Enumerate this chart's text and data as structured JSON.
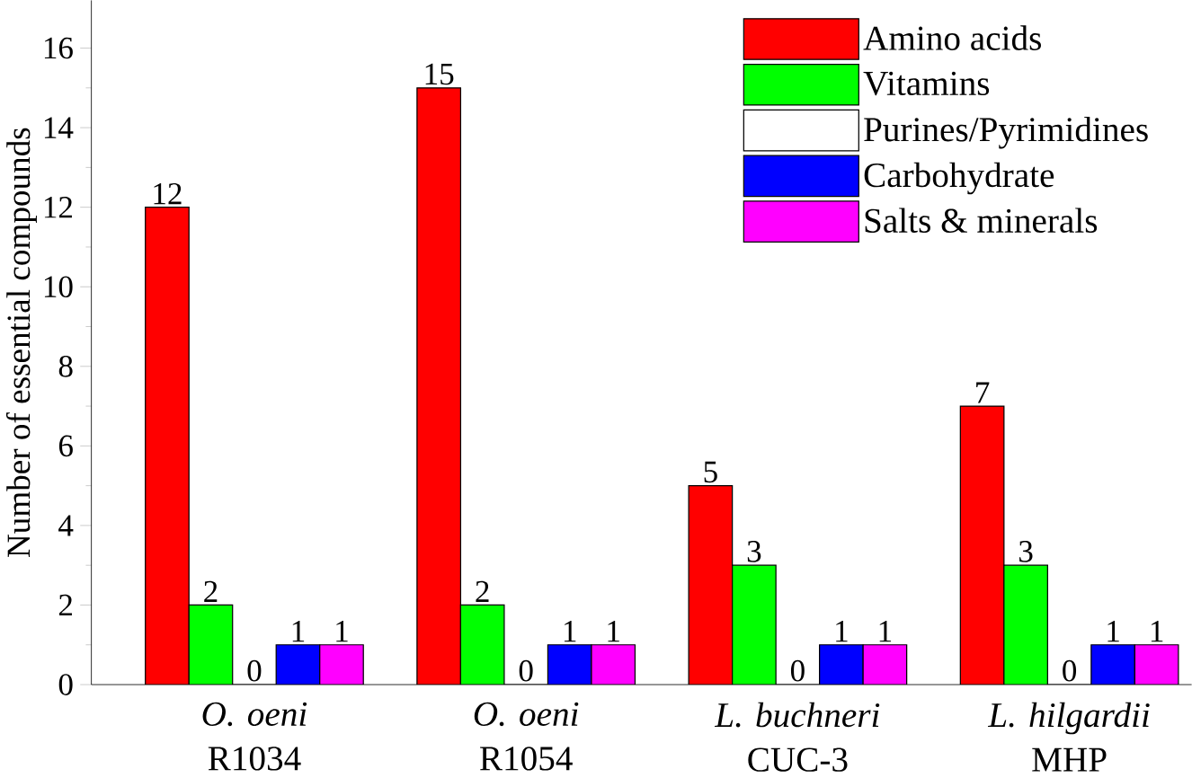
{
  "chart_data": {
    "type": "bar",
    "ylabel": "Number of essential compounds",
    "categories": [
      "*O. oeni* R1034",
      "*O. oeni* R1054",
      "*L. buchneri* CUC-3",
      "*L. hilgardii* MHP"
    ],
    "series": [
      {
        "name": "Amino acids",
        "color": "#ff0000",
        "values": [
          12,
          15,
          5,
          7
        ]
      },
      {
        "name": "Vitamins",
        "color": "#00ff00",
        "values": [
          2,
          2,
          3,
          3
        ]
      },
      {
        "name": "Purines/Pyrimidines",
        "color": "#ffffff",
        "values": [
          0,
          0,
          0,
          0
        ]
      },
      {
        "name": "Carbohydrate",
        "color": "#0000ff",
        "values": [
          1,
          1,
          1,
          1
        ]
      },
      {
        "name": "Salts & minerals",
        "color": "#ff00ff",
        "values": [
          1,
          1,
          1,
          1
        ]
      }
    ],
    "ylim": [
      0,
      17.2
    ],
    "yticks": [
      0,
      2,
      4,
      6,
      8,
      10,
      12,
      14,
      16
    ],
    "data_labels": true,
    "legend": "top right",
    "grid": false
  }
}
